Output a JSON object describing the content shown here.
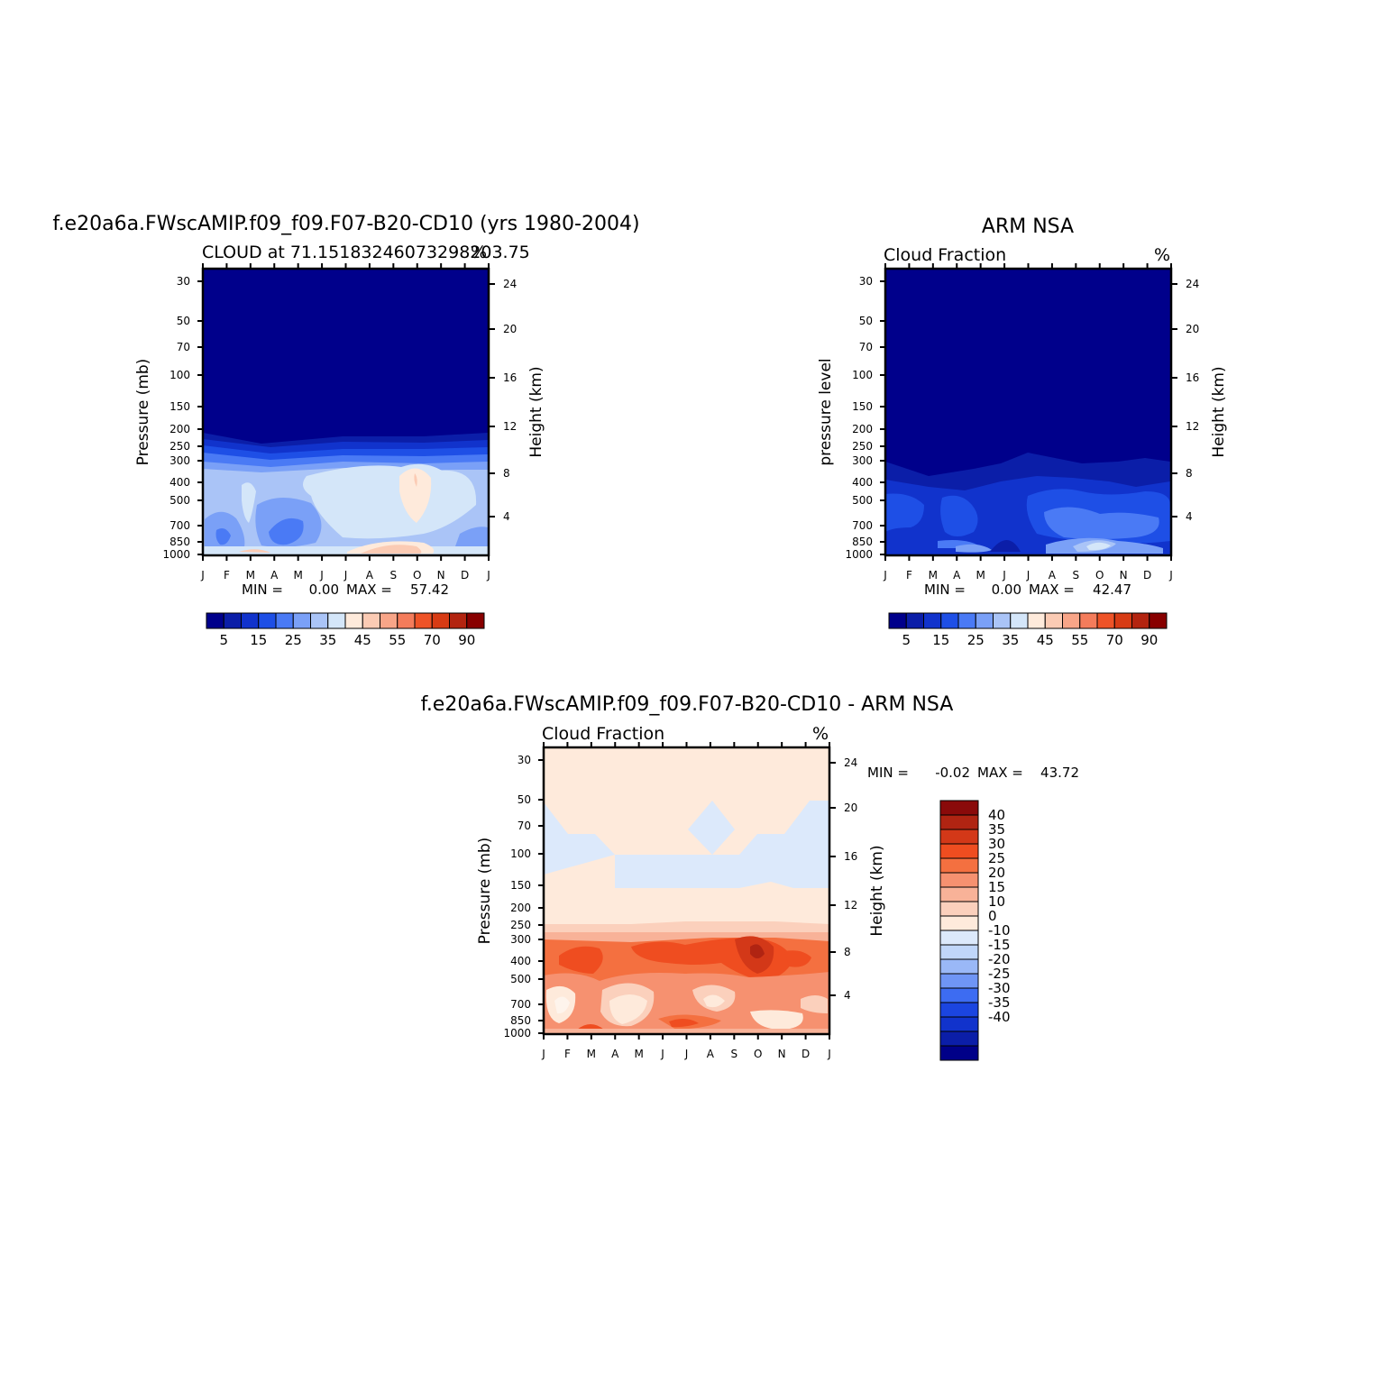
{
  "colors": {
    "abs_scale": [
      "#00008b",
      "#0b1ea8",
      "#1133cc",
      "#1e4fe6",
      "#4a7af5",
      "#7aa0f7",
      "#aac4f7",
      "#d4e6f9",
      "#feeadb",
      "#fbcbb4",
      "#f8a588",
      "#f47c5b",
      "#ee5327",
      "#d73b14",
      "#b32410",
      "#880000"
    ],
    "diff_scale": [
      "#000088",
      "#0b1ea8",
      "#1133cc",
      "#1b45e0",
      "#3d6cf2",
      "#6f95f5",
      "#9ab8f7",
      "#c0d6f9",
      "#dce9fb",
      "#feeadb",
      "#fbd0bc",
      "#f8b298",
      "#f69170",
      "#f47040",
      "#ef4d20",
      "#d33818",
      "#b02412",
      "#8a0a0a"
    ]
  },
  "chart_data": [
    {
      "type": "heatmap",
      "title": "f.e20a6a.FWscAMIP.f09_f09.F07-B20-CD10 (yrs 1980-2004)",
      "subtitle": "CLOUD at 71.15183246073298203.75",
      "units": "%",
      "ylabel": "Pressure (mb)",
      "y2label": "Height (km)",
      "x_ticks": [
        "J",
        "F",
        "M",
        "A",
        "M",
        "J",
        "J",
        "A",
        "S",
        "O",
        "N",
        "D",
        "J"
      ],
      "y_ticks": [
        "30",
        "50",
        "70",
        "100",
        "150",
        "200",
        "250",
        "300",
        "400",
        "500",
        "700",
        "850",
        "1000"
      ],
      "y2_ticks": [
        "24",
        "20",
        "16",
        "12",
        "8",
        "4"
      ],
      "min_label": "MIN =",
      "min": "0.00",
      "max_label": "MAX =",
      "max": "57.42",
      "colorbar_labels": [
        "5",
        "15",
        "25",
        "35",
        "45",
        "55",
        "70",
        "90"
      ]
    },
    {
      "type": "heatmap",
      "title": "ARM NSA",
      "subtitle": "Cloud Fraction",
      "units": "%",
      "ylabel": "pressure level",
      "y2label": "Height (km)",
      "x_ticks": [
        "J",
        "F",
        "M",
        "A",
        "M",
        "J",
        "J",
        "A",
        "S",
        "O",
        "N",
        "D",
        "J"
      ],
      "y_ticks": [
        "30",
        "50",
        "70",
        "100",
        "150",
        "200",
        "250",
        "300",
        "400",
        "500",
        "700",
        "850",
        "1000"
      ],
      "y2_ticks": [
        "24",
        "20",
        "16",
        "12",
        "8",
        "4"
      ],
      "min_label": "MIN =",
      "min": "0.00",
      "max_label": "MAX =",
      "max": "42.47",
      "colorbar_labels": [
        "5",
        "15",
        "25",
        "35",
        "45",
        "55",
        "70",
        "90"
      ]
    },
    {
      "type": "heatmap",
      "title": "f.e20a6a.FWscAMIP.f09_f09.F07-B20-CD10 - ARM NSA",
      "subtitle": "Cloud Fraction",
      "units": "%",
      "ylabel": "Pressure (mb)",
      "y2label": "Height (km)",
      "x_ticks": [
        "J",
        "F",
        "M",
        "A",
        "M",
        "J",
        "J",
        "A",
        "S",
        "O",
        "N",
        "D",
        "J"
      ],
      "y_ticks": [
        "30",
        "50",
        "70",
        "100",
        "150",
        "200",
        "250",
        "300",
        "400",
        "500",
        "700",
        "850",
        "1000"
      ],
      "y2_ticks": [
        "24",
        "20",
        "16",
        "12",
        "8",
        "4"
      ],
      "min_label": "MIN =",
      "min": "-0.02",
      "max_label": "MAX =",
      "max": "43.72",
      "colorbar_labels": [
        "40",
        "35",
        "30",
        "25",
        "20",
        "15",
        "10",
        "0",
        "-10",
        "-15",
        "-20",
        "-25",
        "-30",
        "-35",
        "-40"
      ]
    }
  ]
}
